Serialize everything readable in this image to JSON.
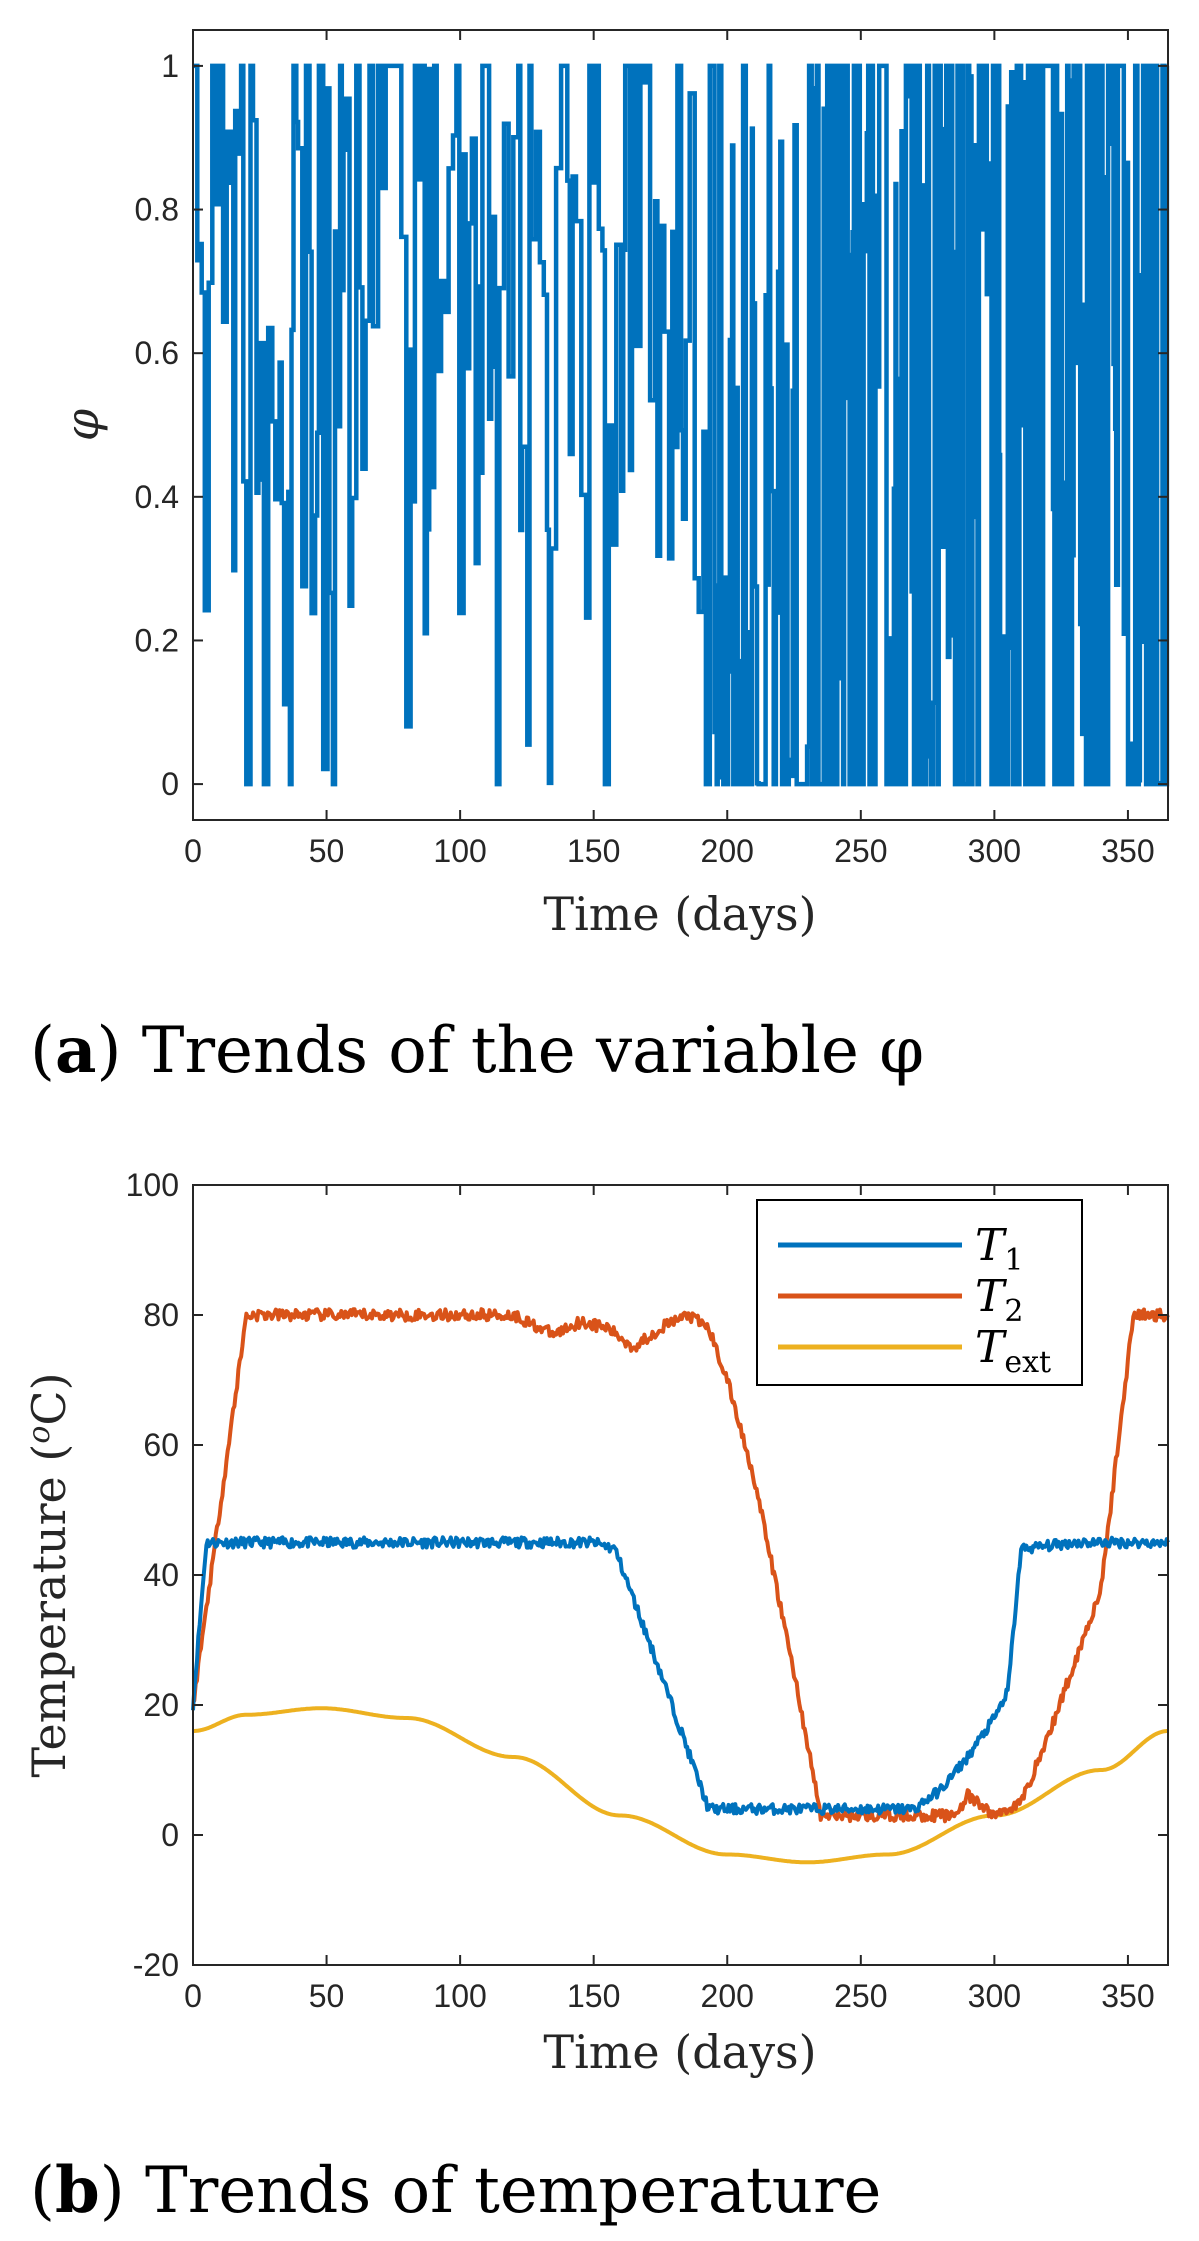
{
  "chart_data": [
    {
      "type": "line",
      "title": "",
      "xlabel": "Time (days)",
      "ylabel": "φ",
      "xlim": [
        0,
        365
      ],
      "ylim": [
        -0.05,
        1.05
      ],
      "xticks": [
        "0",
        "50",
        "100",
        "150",
        "200",
        "250",
        "300",
        "350"
      ],
      "yticks": [
        "0",
        "0.2",
        "0.4",
        "0.6",
        "0.8",
        "1"
      ],
      "caption_letter": "a",
      "caption_text": " Trends of the variable φ",
      "series": [
        {
          "name": "φ",
          "color": "#0072BD",
          "segments": [
            {
              "from": 0,
              "to": 60,
              "mode": "dense",
              "min": 0.0,
              "max": 1.0
            },
            {
              "from": 60,
              "to": 195,
              "mode": "sparse-high",
              "min": 0.0,
              "max": 1.0
            },
            {
              "from": 195,
              "to": 230,
              "mode": "dense-low",
              "min": 0.0,
              "max": 1.0
            },
            {
              "from": 230,
              "to": 365,
              "mode": "very-dense",
              "min": 0.0,
              "max": 1.0
            }
          ]
        }
      ]
    },
    {
      "type": "line",
      "title": "",
      "xlabel": "Time (days)",
      "ylabel": "Temperature (°C)",
      "ylabel_parts": [
        "Temperature (",
        "o",
        "C)"
      ],
      "xlim": [
        0,
        365
      ],
      "ylim": [
        -20,
        100
      ],
      "xticks": [
        "0",
        "50",
        "100",
        "150",
        "200",
        "250",
        "300",
        "350"
      ],
      "yticks": [
        "-20",
        "0",
        "20",
        "40",
        "60",
        "80",
        "100"
      ],
      "caption_letter": "b",
      "caption_text": " Trends of temperature",
      "legend_position": "top-right",
      "series": [
        {
          "name": "T1",
          "label_main": "T",
          "label_sub": "1",
          "color": "#0072BD",
          "x": [
            0,
            5,
            20,
            50,
            100,
            120,
            150,
            158,
            175,
            193,
            200,
            235,
            270,
            280,
            290,
            300,
            305,
            310,
            330,
            365
          ],
          "y": [
            20,
            45,
            45,
            45,
            45,
            45,
            45,
            44,
            25,
            4,
            4,
            4,
            4,
            7,
            12,
            18,
            22,
            44,
            45,
            45
          ]
        },
        {
          "name": "T2",
          "label_main": "T",
          "label_sub": "2",
          "color": "#D95319",
          "x": [
            0,
            20,
            60,
            120,
            125,
            135,
            145,
            155,
            165,
            175,
            185,
            193,
            200,
            210,
            225,
            235,
            260,
            285,
            290,
            300,
            310,
            320,
            340,
            352,
            365
          ],
          "y": [
            20,
            80,
            80,
            80,
            79,
            77,
            79,
            78,
            75,
            78,
            80,
            78,
            70,
            55,
            25,
            3,
            3,
            3,
            6,
            3,
            5,
            15,
            38,
            80,
            80
          ]
        },
        {
          "name": "Text",
          "label_main": "T",
          "label_sub": "ext",
          "color": "#EDB120",
          "x": [
            0,
            20,
            48,
            80,
            120,
            160,
            200,
            230,
            260,
            300,
            340,
            365
          ],
          "y": [
            16,
            18.5,
            19.5,
            18,
            12,
            3,
            -3,
            -4.2,
            -3,
            3,
            10,
            16
          ]
        }
      ]
    }
  ]
}
